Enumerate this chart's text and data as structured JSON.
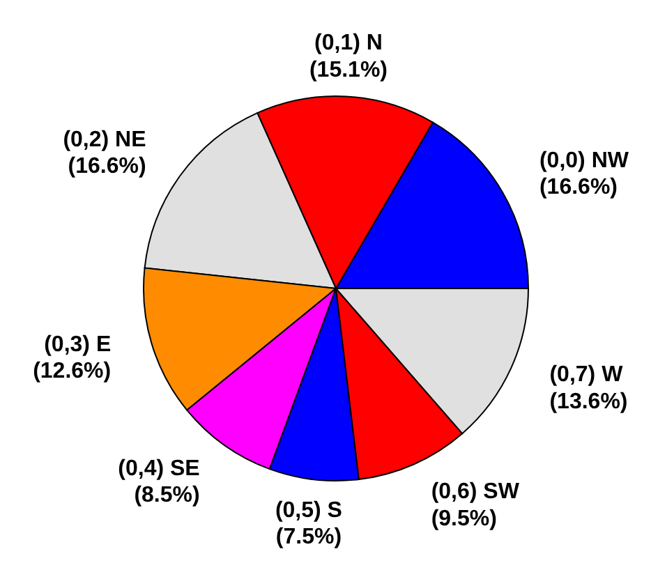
{
  "chart_data": {
    "type": "pie",
    "categories": [
      "(0,0) NW",
      "(0,1) N",
      "(0,2) NE",
      "(0,3) E",
      "(0,4) SE",
      "(0,5) S",
      "(0,6) SW",
      "(0,7) W"
    ],
    "values": [
      16.6,
      15.1,
      16.6,
      12.6,
      8.5,
      7.5,
      9.5,
      13.6
    ],
    "colors": [
      "#0000ff",
      "#ff0000",
      "#e0e0e0",
      "#ff8c00",
      "#ff00ff",
      "#0000ff",
      "#ff0000",
      "#e0e0e0"
    ],
    "value_labels": [
      "(16.6%)",
      "(15.1%)",
      "(16.6%)",
      "(12.6%)",
      "(8.5%)",
      "(7.5%)",
      "(9.5%)",
      "(13.6%)"
    ]
  }
}
